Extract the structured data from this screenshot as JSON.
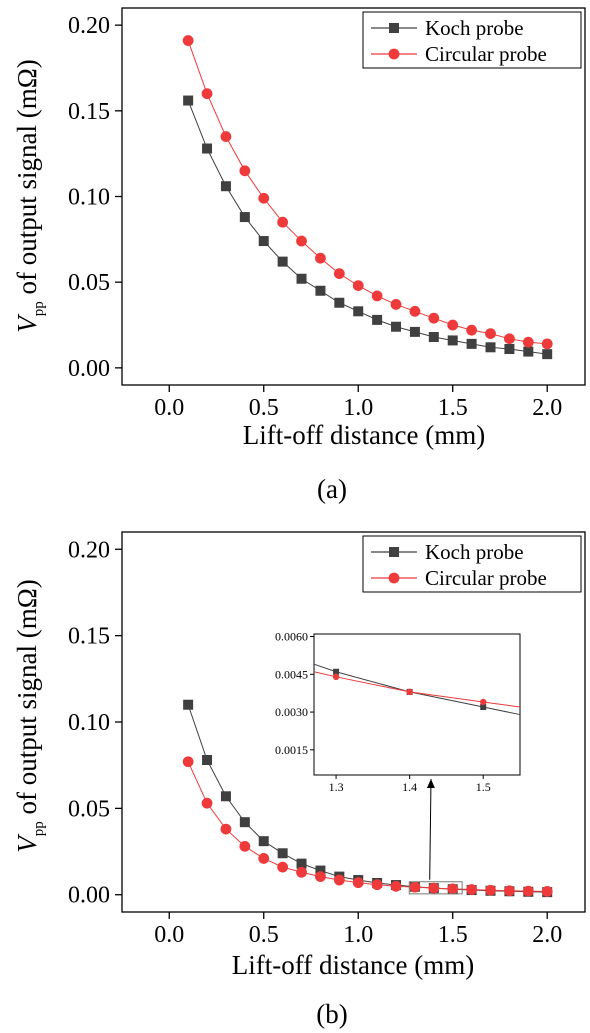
{
  "chart_data": [
    {
      "type": "line",
      "caption": "(a)",
      "xlabel": "Lift-off distance (mm)",
      "ylabel": {
        "main": "V",
        "sub": "pp",
        "rest": " of output signal (mΩ)"
      },
      "xlim": [
        -0.25,
        2.2
      ],
      "ylim": [
        -0.01,
        0.21
      ],
      "xticks": [
        "0.0",
        "0.5",
        "1.0",
        "1.5",
        "2.0"
      ],
      "yticks": [
        "0.00",
        "0.05",
        "0.10",
        "0.15",
        "0.20"
      ],
      "legend_position": "top-right",
      "x": [
        0.1,
        0.2,
        0.3,
        0.4,
        0.5,
        0.6,
        0.7,
        0.8,
        0.9,
        1.0,
        1.1,
        1.2,
        1.3,
        1.4,
        1.5,
        1.6,
        1.7,
        1.8,
        1.9,
        2.0
      ],
      "series": [
        {
          "name": "Koch probe",
          "color": "#404040",
          "marker": "square",
          "values": [
            0.156,
            0.128,
            0.106,
            0.088,
            0.074,
            0.062,
            0.052,
            0.045,
            0.038,
            0.033,
            0.028,
            0.024,
            0.021,
            0.018,
            0.016,
            0.014,
            0.012,
            0.011,
            0.0095,
            0.008
          ]
        },
        {
          "name": "Circular probe",
          "color": "#ee3a3a",
          "marker": "circle",
          "values": [
            0.191,
            0.16,
            0.135,
            0.115,
            0.099,
            0.085,
            0.074,
            0.064,
            0.055,
            0.048,
            0.042,
            0.037,
            0.033,
            0.029,
            0.025,
            0.022,
            0.02,
            0.017,
            0.015,
            0.014
          ]
        }
      ]
    },
    {
      "type": "line",
      "caption": "(b)",
      "xlabel": "Lift-off distance (mm)",
      "ylabel": {
        "main": "V",
        "sub": "pp",
        "rest": " of output signal (mΩ)"
      },
      "xlim": [
        -0.25,
        2.2
      ],
      "ylim": [
        -0.01,
        0.21
      ],
      "xticks": [
        "0.0",
        "0.5",
        "1.0",
        "1.5",
        "2.0"
      ],
      "yticks": [
        "0.00",
        "0.05",
        "0.10",
        "0.15",
        "0.20"
      ],
      "legend_position": "top-right",
      "x": [
        0.1,
        0.2,
        0.3,
        0.4,
        0.5,
        0.6,
        0.7,
        0.8,
        0.9,
        1.0,
        1.1,
        1.2,
        1.3,
        1.4,
        1.5,
        1.6,
        1.7,
        1.8,
        1.9,
        2.0
      ],
      "series": [
        {
          "name": "Koch probe",
          "color": "#404040",
          "marker": "square",
          "values": [
            0.11,
            0.078,
            0.057,
            0.042,
            0.031,
            0.024,
            0.018,
            0.014,
            0.0105,
            0.0085,
            0.0068,
            0.0056,
            0.0046,
            0.0038,
            0.0032,
            0.0027,
            0.0023,
            0.002,
            0.0017,
            0.0015
          ]
        },
        {
          "name": "Circular probe",
          "color": "#ee3a3a",
          "marker": "circle",
          "values": [
            0.077,
            0.053,
            0.038,
            0.028,
            0.021,
            0.016,
            0.013,
            0.0105,
            0.0085,
            0.007,
            0.0058,
            0.0049,
            0.0044,
            0.0038,
            0.0034,
            0.003,
            0.0026,
            0.0023,
            0.0021,
            0.0019
          ]
        }
      ],
      "inset": {
        "xlim": [
          1.27,
          1.55
        ],
        "ylim": [
          0.0005,
          0.0061
        ],
        "xticks": [
          "1.3",
          "1.4",
          "1.5"
        ],
        "yticks": [
          "0.0015",
          "0.0030",
          "0.0045",
          "0.0060"
        ],
        "series": [
          {
            "name": "Koch probe",
            "color": "#404040",
            "marker": "square",
            "x": [
              1.27,
              1.3,
              1.4,
              1.5,
              1.55
            ],
            "values": [
              0.0049,
              0.0046,
              0.0038,
              0.0032,
              0.0029
            ],
            "marker_indices": [
              1,
              2,
              3
            ]
          },
          {
            "name": "Circular probe",
            "color": "#ee3a3a",
            "marker": "circle",
            "x": [
              1.27,
              1.3,
              1.4,
              1.5,
              1.55
            ],
            "values": [
              0.0046,
              0.0044,
              0.0038,
              0.0034,
              0.0032
            ],
            "marker_indices": [
              1,
              2,
              3
            ]
          }
        ]
      }
    }
  ]
}
